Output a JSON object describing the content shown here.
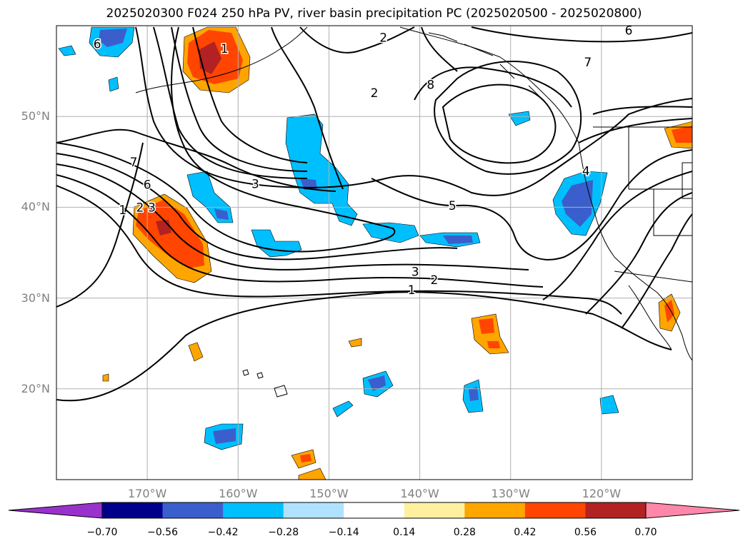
{
  "title": "2025020300 F024 250 hPa PV, river basin precipitation PC (2025020500 - 2025020800)",
  "map": {
    "projection": "plate-carree",
    "lon_range": [
      -180,
      -110
    ],
    "lat_range": [
      10,
      60
    ],
    "gridlines": true,
    "lat_ticks": [
      {
        "value": 20,
        "label": "20°N"
      },
      {
        "value": 30,
        "label": "30°N"
      },
      {
        "value": 40,
        "label": "40°N"
      },
      {
        "value": 50,
        "label": "50°N"
      }
    ],
    "lon_ticks": [
      {
        "value": -170,
        "label": "170°W"
      },
      {
        "value": -160,
        "label": "160°W"
      },
      {
        "value": -150,
        "label": "150°W"
      },
      {
        "value": -140,
        "label": "140°W"
      },
      {
        "value": -130,
        "label": "130°W"
      },
      {
        "value": -120,
        "label": "120°W"
      }
    ],
    "contour_labels": [
      {
        "text": "6",
        "lon": -175.5,
        "lat": 58.0
      },
      {
        "text": "1",
        "lon": -161.5,
        "lat": 57.5
      },
      {
        "text": "2",
        "lon": -144.0,
        "lat": 58.7
      },
      {
        "text": "6",
        "lon": -117.0,
        "lat": 59.5
      },
      {
        "text": "7",
        "lon": -121.5,
        "lat": 56.0
      },
      {
        "text": "2",
        "lon": -145.0,
        "lat": 52.6
      },
      {
        "text": "8",
        "lon": -138.8,
        "lat": 53.5
      },
      {
        "text": "7",
        "lon": -171.5,
        "lat": 45.0
      },
      {
        "text": "6",
        "lon": -170.0,
        "lat": 42.5
      },
      {
        "text": "1",
        "lon": -172.7,
        "lat": 39.7
      },
      {
        "text": "2",
        "lon": -170.8,
        "lat": 40.0
      },
      {
        "text": "3",
        "lon": -169.5,
        "lat": 40.0
      },
      {
        "text": "3",
        "lon": -158.1,
        "lat": 42.6
      },
      {
        "text": "5",
        "lon": -136.4,
        "lat": 40.2
      },
      {
        "text": "4",
        "lon": -121.7,
        "lat": 44.0
      },
      {
        "text": "3",
        "lon": -140.5,
        "lat": 32.9
      },
      {
        "text": "2",
        "lon": -138.4,
        "lat": 32.0
      },
      {
        "text": "1",
        "lon": -140.9,
        "lat": 30.9
      }
    ]
  },
  "colorbar": {
    "extend": "both",
    "tick_labels": [
      "−0.70",
      "−0.56",
      "−0.42",
      "−0.28",
      "−0.14",
      "0.14",
      "0.28",
      "0.42",
      "0.56",
      "0.70"
    ],
    "colors": [
      "#9932cc",
      "#00008b",
      "#3a5fcd",
      "#00bfff",
      "#b0e2ff",
      "#ffffff",
      "#fff0a0",
      "#ffa500",
      "#ff4500",
      "#b22222",
      "#ff88aa"
    ]
  },
  "chart_data": {
    "type": "map",
    "title": "2025020300 F024 250 hPa PV, river basin precipitation PC (2025020500 - 2025020800)",
    "lon_range": [
      -180,
      -110
    ],
    "lat_range": [
      10,
      60
    ],
    "pv_contour_levels": [
      1,
      2,
      3,
      4,
      5,
      6,
      7,
      8
    ],
    "colorbar_levels": [
      -0.7,
      -0.56,
      -0.42,
      -0.28,
      -0.14,
      0.14,
      0.28,
      0.42,
      0.56,
      0.7
    ]
  }
}
